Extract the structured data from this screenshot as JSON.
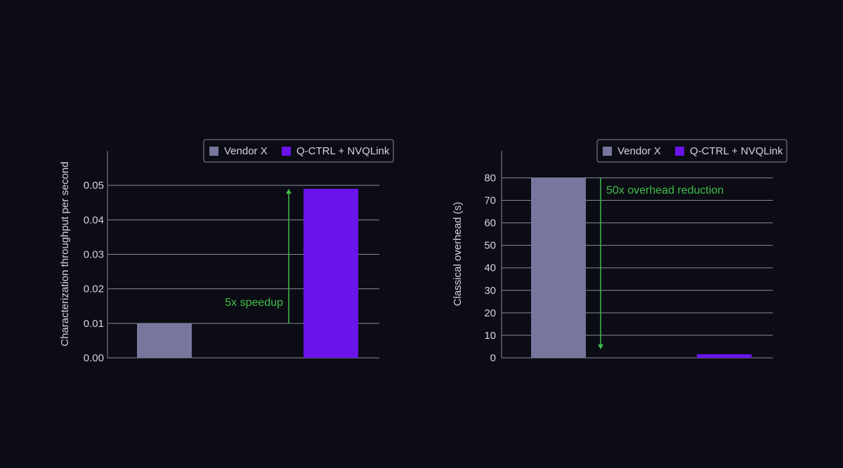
{
  "colors": {
    "background": "#0c0c14",
    "grid": "#8a8a9a",
    "vendor": "#77779d",
    "qctrl": "#6a14eb",
    "annotation": "#3fbf4a",
    "legend_border": "#8a8a9a"
  },
  "chart_data": [
    {
      "type": "bar",
      "categories": [
        "Vendor X",
        "Q-CTRL + NVQLink"
      ],
      "values": [
        0.01,
        0.049
      ],
      "ylabel": "Characterization throughput per second",
      "ylim": [
        0,
        0.06
      ],
      "yticks": [
        "0.00",
        "0.01",
        "0.02",
        "0.03",
        "0.04",
        "0.05"
      ],
      "legend": {
        "placement": "top-right",
        "entries": [
          "Vendor X",
          "Q-CTRL + NVQLink"
        ]
      },
      "annotation": {
        "text": "5x speedup",
        "direction": "up",
        "from_value": 0.01,
        "to_value": 0.049
      },
      "grid": true
    },
    {
      "type": "bar",
      "categories": [
        "Vendor X",
        "Q-CTRL + NVQLink"
      ],
      "values": [
        80,
        1.6
      ],
      "ylabel": "Classical overhead (s)",
      "ylim": [
        0,
        92
      ],
      "yticks": [
        "0",
        "10",
        "20",
        "30",
        "40",
        "50",
        "60",
        "70",
        "80"
      ],
      "legend": {
        "placement": "top-right",
        "entries": [
          "Vendor X",
          "Q-CTRL + NVQLink"
        ]
      },
      "annotation": {
        "text": "50x overhead reduction",
        "direction": "down",
        "from_value": 80,
        "to_value": 3.8
      },
      "grid": true
    }
  ]
}
